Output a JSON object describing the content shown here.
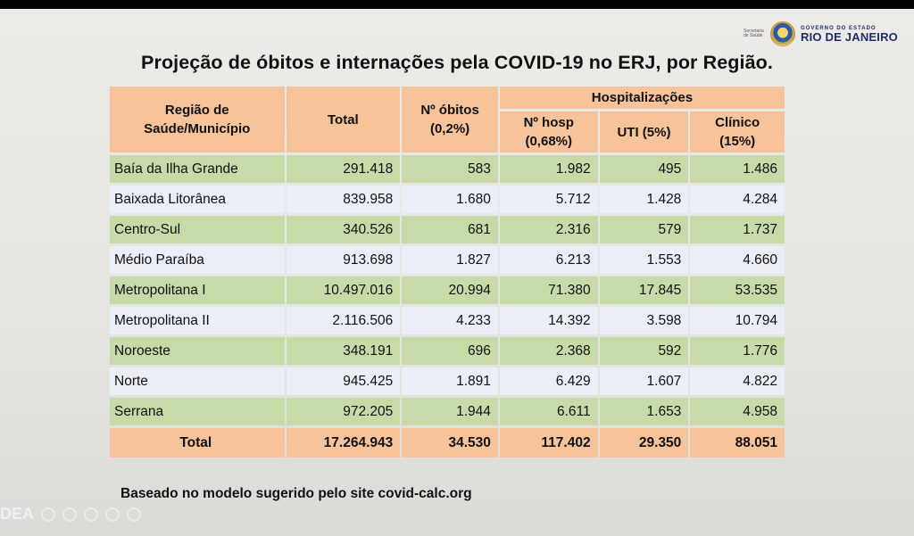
{
  "logo": {
    "secretaria": "Secretaria de Saúde",
    "gov_small": "GOVERNO DO ESTADO",
    "gov_big": "RIO DE JANEIRO"
  },
  "title": "Projeção de óbitos e internações pela COVID-19  no ERJ, por Região.",
  "table": {
    "headers": {
      "region": "Região de Saúde/Município",
      "total": "Total",
      "obitos": "Nº óbitos (0,2%)",
      "hospitalizacoes": "Hospitalizações",
      "hosp": "Nº hosp (0,68%)",
      "uti": "UTI (5%)",
      "clinico": "Clínico (15%)"
    },
    "rows": [
      {
        "name": "Baía da Ilha Grande",
        "total": "291.418",
        "obitos": "583",
        "hosp": "1.982",
        "uti": "495",
        "clinico": "1.486"
      },
      {
        "name": "Baixada Litorânea",
        "total": "839.958",
        "obitos": "1.680",
        "hosp": "5.712",
        "uti": "1.428",
        "clinico": "4.284"
      },
      {
        "name": "Centro-Sul",
        "total": "340.526",
        "obitos": "681",
        "hosp": "2.316",
        "uti": "579",
        "clinico": "1.737"
      },
      {
        "name": "Médio Paraíba",
        "total": "913.698",
        "obitos": "1.827",
        "hosp": "6.213",
        "uti": "1.553",
        "clinico": "4.660"
      },
      {
        "name": "Metropolitana I",
        "total": "10.497.016",
        "obitos": "20.994",
        "hosp": "71.380",
        "uti": "17.845",
        "clinico": "53.535"
      },
      {
        "name": "Metropolitana II",
        "total": "2.116.506",
        "obitos": "4.233",
        "hosp": "14.392",
        "uti": "3.598",
        "clinico": "10.794"
      },
      {
        "name": "Noroeste",
        "total": "348.191",
        "obitos": "696",
        "hosp": "2.368",
        "uti": "592",
        "clinico": "1.776"
      },
      {
        "name": "Norte",
        "total": "945.425",
        "obitos": "1.891",
        "hosp": "6.429",
        "uti": "1.607",
        "clinico": "4.822"
      },
      {
        "name": "Serrana",
        "total": "972.205",
        "obitos": "1.944",
        "hosp": "6.611",
        "uti": "1.653",
        "clinico": "4.958"
      }
    ],
    "total_row": {
      "name": "Total",
      "total": "17.264.943",
      "obitos": "34.530",
      "hosp": "117.402",
      "uti": "29.350",
      "clinico": "88.051"
    }
  },
  "footnote": "Baseado no modelo sugerido pelo site covid-calc.org",
  "watermark": "DEA",
  "colors": {
    "header": "#f7c39b",
    "row_green": "#c6dba7",
    "row_light": "#eaeef6"
  }
}
